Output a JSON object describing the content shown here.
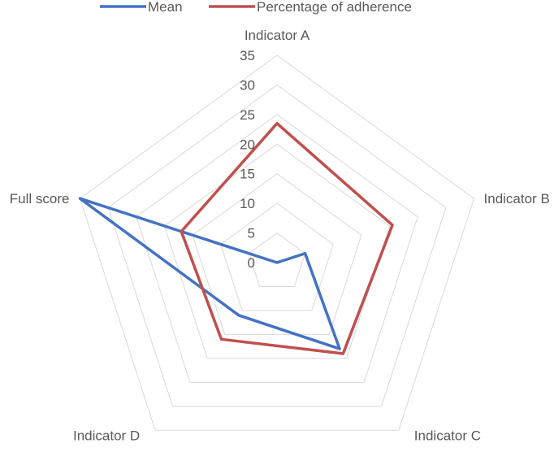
{
  "chart_data": {
    "type": "radar",
    "categories": [
      "Indicator A",
      "Indicator B",
      "Indicator C",
      "Indicator D",
      "Full score"
    ],
    "series": [
      {
        "name": "Mean",
        "values": [
          0,
          5,
          18,
          11,
          35
        ],
        "color": "#4472c4"
      },
      {
        "name": "Percentage of adherence",
        "values": [
          23.5,
          20.5,
          19,
          16,
          17
        ],
        "color": "#c0504d"
      }
    ],
    "rlim": [
      0,
      35
    ],
    "ticks": [
      "0",
      "5",
      "10",
      "15",
      "20",
      "25",
      "30",
      "35"
    ],
    "grid": true,
    "legend_position": "top"
  }
}
